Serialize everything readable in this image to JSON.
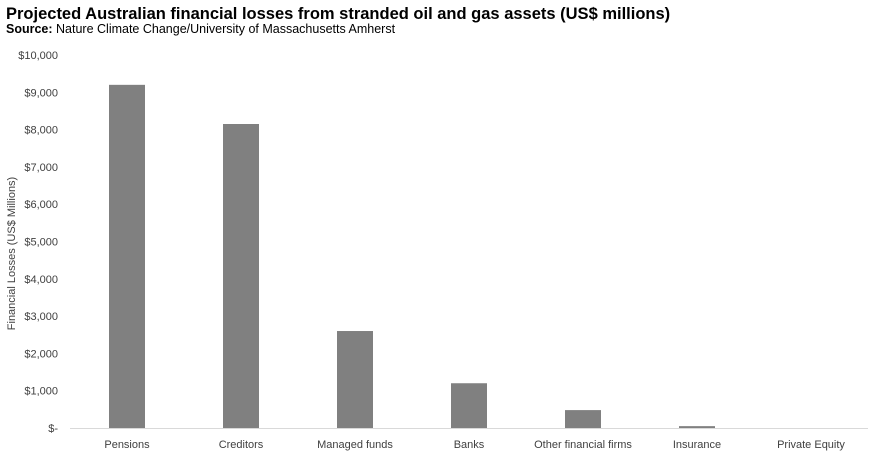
{
  "header": {
    "title": "Projected Australian financial losses from stranded oil and gas assets (US$ millions)",
    "source_label": "Source:",
    "source_text": " Nature Climate Change/University of Massachusetts Amherst"
  },
  "chart_data": {
    "type": "bar",
    "title": "Projected Australian financial losses from stranded oil and gas assets (US$ millions)",
    "ylabel": "Financial Losses (US$ Millions)",
    "xlabel": "",
    "categories": [
      "Pensions",
      "Creditors",
      "Managed funds",
      "Banks",
      "Other financial firms",
      "Insurance",
      "Private Equity"
    ],
    "values": [
      9200,
      8150,
      2600,
      1200,
      480,
      50,
      0
    ],
    "ylim": [
      0,
      10000
    ],
    "yticks": [
      0,
      1000,
      2000,
      3000,
      4000,
      5000,
      6000,
      7000,
      8000,
      9000,
      10000
    ],
    "ytick_labels": [
      "$-",
      "$1,000",
      "$2,000",
      "$3,000",
      "$4,000",
      "$5,000",
      "$6,000",
      "$7,000",
      "$8,000",
      "$9,000",
      "$10,000"
    ],
    "bar_color": "#808080",
    "grid": false
  }
}
